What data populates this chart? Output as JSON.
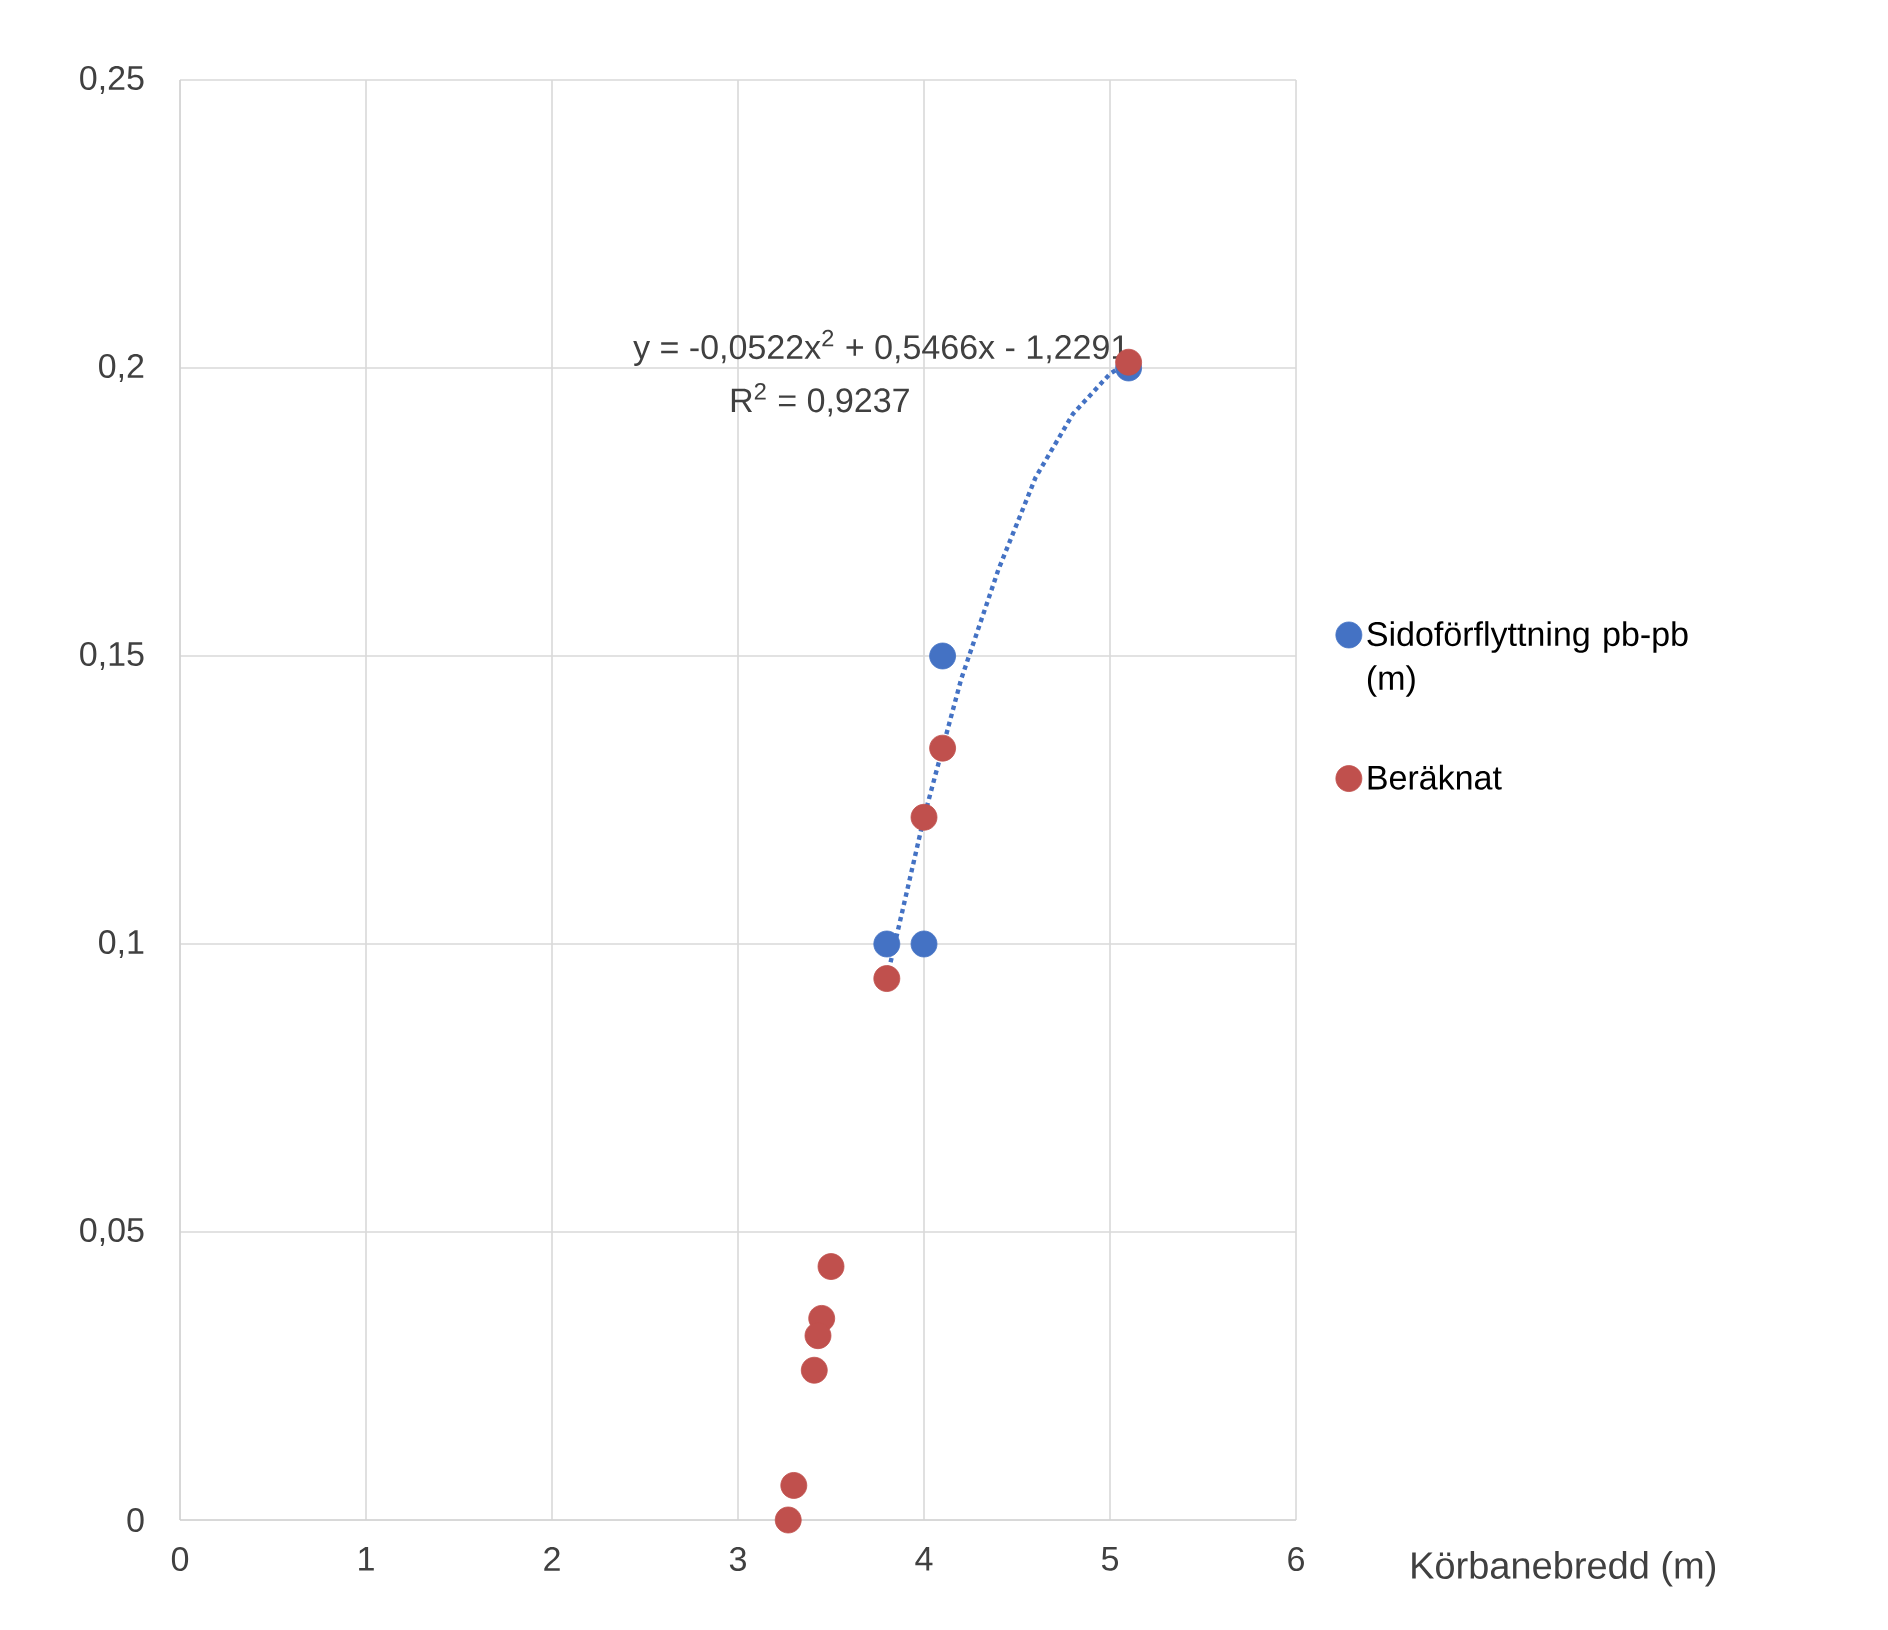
{
  "chart_data": {
    "type": "scatter",
    "xlabel": "Körbanebredd (m)",
    "xlim": [
      0,
      6
    ],
    "xticks": [
      0,
      1,
      2,
      3,
      4,
      5,
      6
    ],
    "ylim": [
      0,
      0.25
    ],
    "yticks": [
      {
        "value": 0,
        "label": "0"
      },
      {
        "value": 0.05,
        "label": "0,05"
      },
      {
        "value": 0.1,
        "label": "0,1"
      },
      {
        "value": 0.15,
        "label": "0,15"
      },
      {
        "value": 0.2,
        "label": "0,2"
      },
      {
        "value": 0.25,
        "label": "0,25"
      }
    ],
    "grid": true,
    "legend": "right",
    "marker": "circle",
    "series": [
      {
        "name": "Sidoförflyttning pb-pb (m)",
        "color": "#4472c4",
        "x": [
          3.8,
          4.0,
          4.1,
          5.1
        ],
        "values": [
          0.1,
          0.1,
          0.15,
          0.2
        ]
      },
      {
        "name": "Beräknat",
        "color": "#c0504d",
        "x": [
          3.8,
          4.0,
          4.1,
          5.1,
          3.5,
          3.45,
          3.43,
          3.41,
          3.3,
          3.27
        ],
        "values": [
          0.094,
          0.122,
          0.134,
          0.201,
          0.044,
          0.035,
          0.032,
          0.026,
          0.006,
          0.0
        ]
      },
      {
        "type": "line",
        "line_style": "dotted",
        "marker": "none",
        "color": "#4472c4",
        "x": [
          3.8,
          4.0,
          4.2,
          4.4,
          4.6,
          4.8,
          5.0,
          5.1
        ],
        "values": [
          0.094,
          0.122,
          0.146,
          0.165,
          0.181,
          0.192,
          0.199,
          0.201
        ]
      }
    ],
    "annotations": [
      "y = -0,0522x$^{2}$ + 0,5466x - 1,2291",
      "R$^{2}$ = 0,9237"
    ]
  }
}
